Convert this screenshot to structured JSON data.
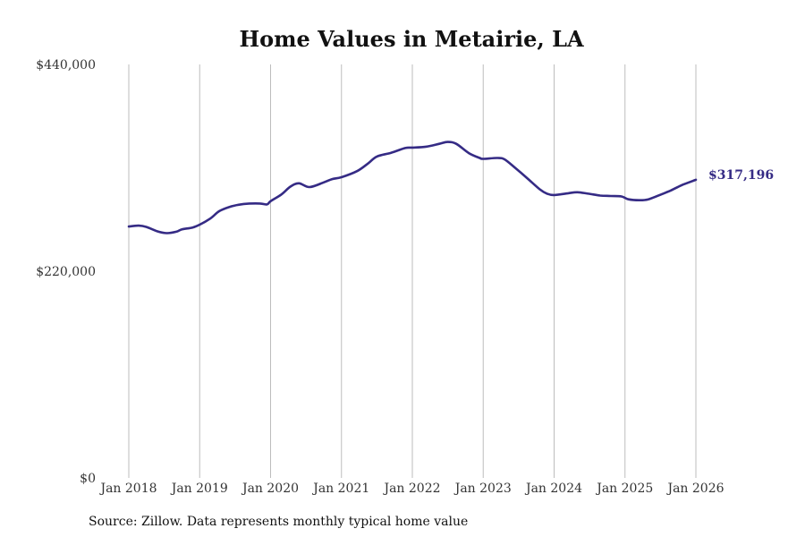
{
  "chart_data": {
    "type": "line",
    "title": "Home Values in Metairie, LA",
    "xlabel": "",
    "ylabel": "",
    "source": "Source: Zillow. Data represents monthly typical home value",
    "ylim": [
      0,
      440000
    ],
    "yticks": [
      {
        "value": 0,
        "label": "$0"
      },
      {
        "value": 220000,
        "label": "$220,000"
      },
      {
        "value": 440000,
        "label": "$440,000"
      }
    ],
    "xlim": [
      2018.0,
      2026.0
    ],
    "xticks": [
      {
        "value": 2018,
        "label": "Jan 2018"
      },
      {
        "value": 2019,
        "label": "Jan 2019"
      },
      {
        "value": 2020,
        "label": "Jan 2020"
      },
      {
        "value": 2021,
        "label": "Jan 2021"
      },
      {
        "value": 2022,
        "label": "Jan 2022"
      },
      {
        "value": 2023,
        "label": "Jan 2023"
      },
      {
        "value": 2024,
        "label": "Jan 2024"
      },
      {
        "value": 2025,
        "label": "Jan 2025"
      },
      {
        "value": 2026,
        "label": "Jan 2026"
      }
    ],
    "grid": "vertical",
    "series": [
      {
        "name": "Typical home value",
        "color": "#352b85",
        "end_label": "$317,196",
        "points": [
          [
            2018.0,
            267500
          ],
          [
            2018.14,
            268500
          ],
          [
            2018.25,
            267000
          ],
          [
            2018.42,
            262000
          ],
          [
            2018.54,
            260500
          ],
          [
            2018.67,
            262000
          ],
          [
            2018.75,
            264500
          ],
          [
            2018.9,
            266500
          ],
          [
            2019.0,
            269500
          ],
          [
            2019.15,
            276000
          ],
          [
            2019.28,
            284000
          ],
          [
            2019.45,
            289000
          ],
          [
            2019.62,
            291500
          ],
          [
            2019.85,
            292000
          ],
          [
            2019.95,
            291000
          ],
          [
            2020.0,
            294500
          ],
          [
            2020.15,
            301500
          ],
          [
            2020.28,
            310000
          ],
          [
            2020.4,
            313500
          ],
          [
            2020.55,
            309500
          ],
          [
            2020.75,
            314500
          ],
          [
            2020.87,
            318000
          ],
          [
            2021.0,
            320000
          ],
          [
            2021.22,
            326500
          ],
          [
            2021.38,
            335000
          ],
          [
            2021.5,
            342000
          ],
          [
            2021.7,
            346000
          ],
          [
            2021.9,
            351000
          ],
          [
            2022.0,
            351500
          ],
          [
            2022.19,
            352500
          ],
          [
            2022.38,
            355500
          ],
          [
            2022.5,
            357500
          ],
          [
            2022.62,
            355500
          ],
          [
            2022.8,
            345500
          ],
          [
            2022.95,
            340500
          ],
          [
            2023.0,
            339500
          ],
          [
            2023.2,
            340500
          ],
          [
            2023.3,
            339000
          ],
          [
            2023.45,
            330000
          ],
          [
            2023.62,
            319000
          ],
          [
            2023.8,
            307000
          ],
          [
            2023.9,
            302500
          ],
          [
            2024.0,
            301000
          ],
          [
            2024.2,
            303000
          ],
          [
            2024.33,
            304000
          ],
          [
            2024.48,
            302500
          ],
          [
            2024.65,
            300500
          ],
          [
            2024.8,
            300000
          ],
          [
            2024.95,
            299500
          ],
          [
            2025.05,
            296500
          ],
          [
            2025.2,
            295500
          ],
          [
            2025.33,
            296500
          ],
          [
            2025.52,
            302000
          ],
          [
            2025.65,
            306000
          ],
          [
            2025.8,
            311500
          ],
          [
            2026.0,
            317196
          ]
        ]
      }
    ]
  }
}
